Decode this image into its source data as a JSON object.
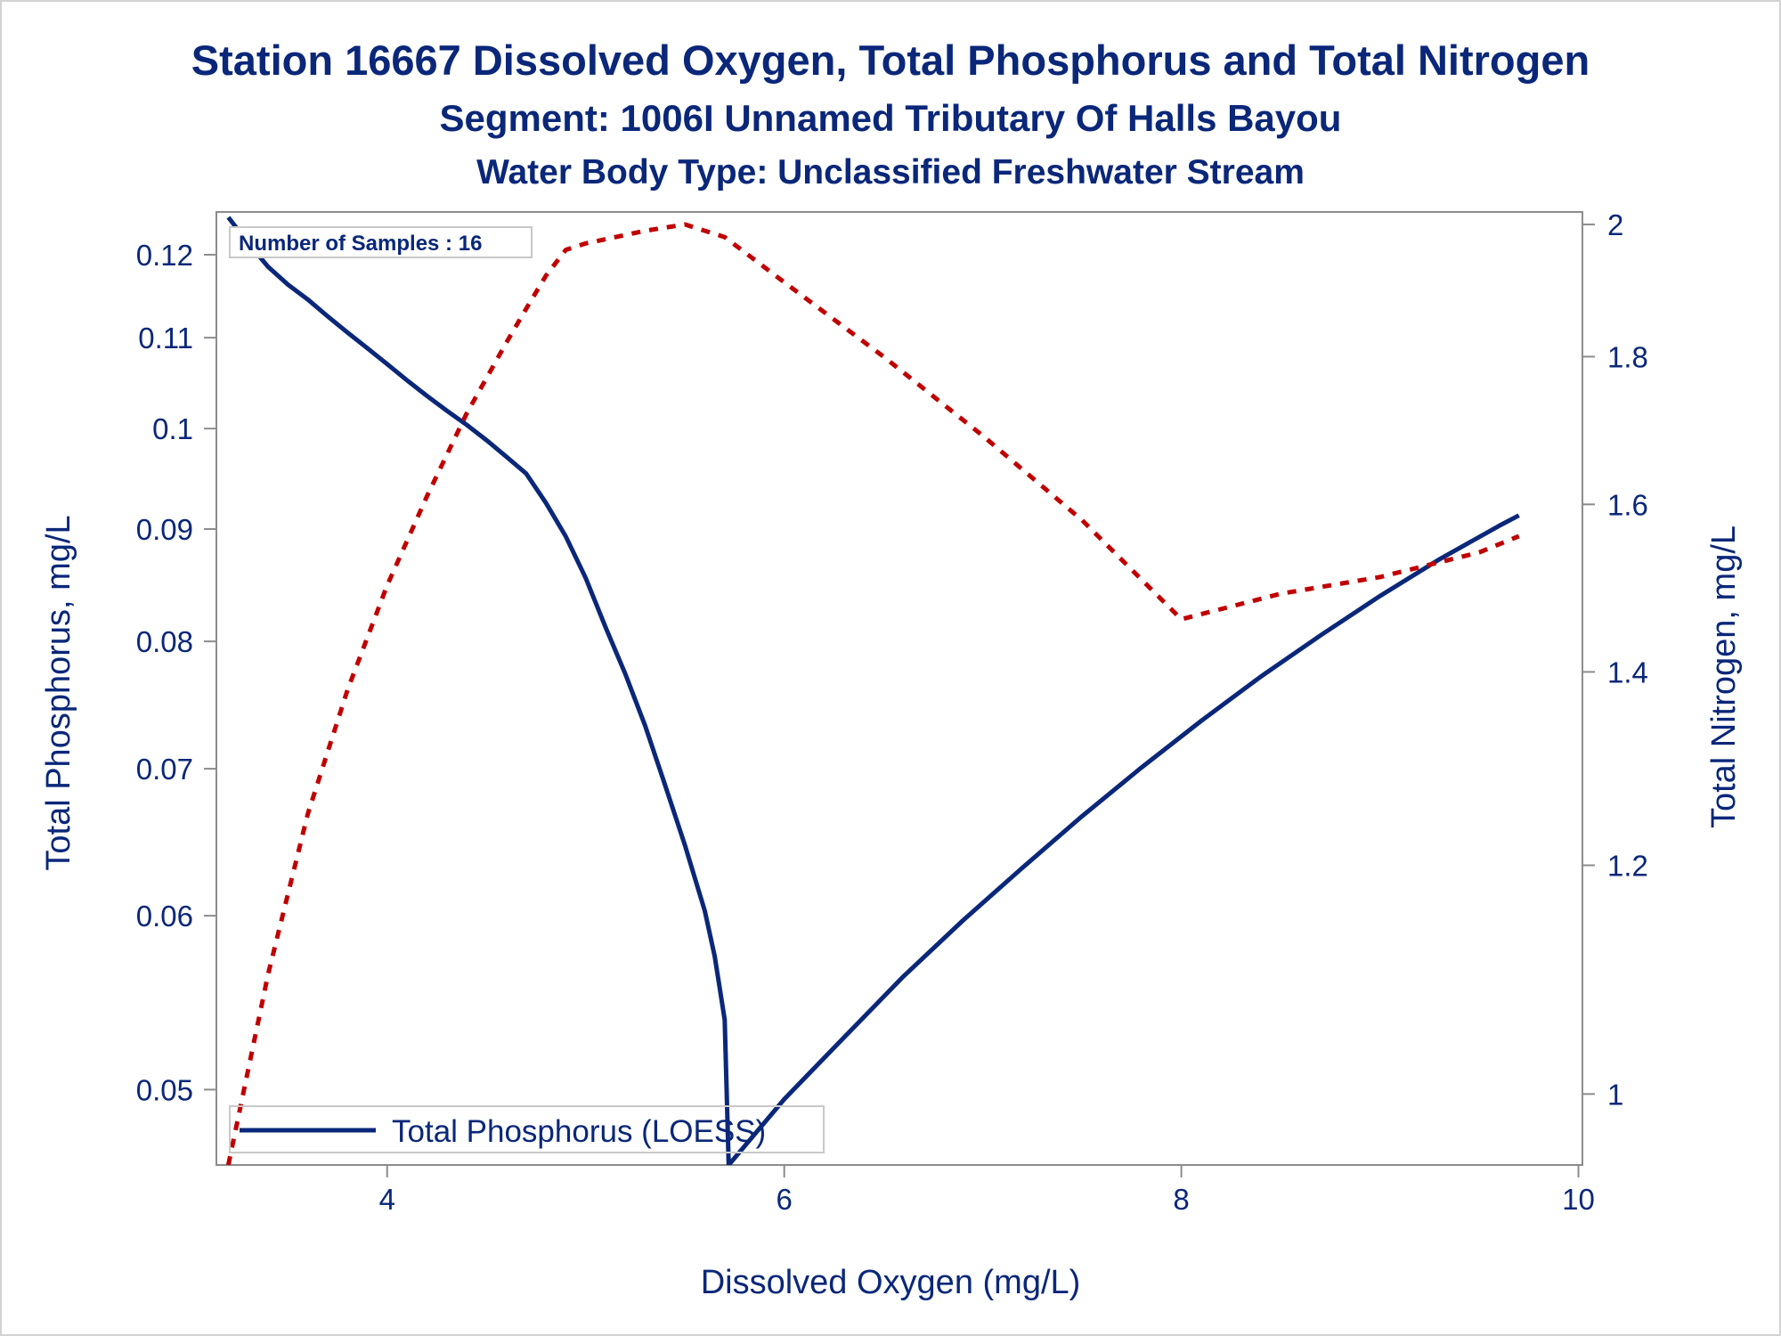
{
  "chart_data": {
    "type": "line",
    "title": "Station 16667  Dissolved Oxygen, Total Phosphorus and Total Nitrogen",
    "subtitles": [
      "Segment: 1006I  Unnamed Tributary Of Halls Bayou",
      "Water Body Type: Unclassified Freshwater Stream"
    ],
    "xlabel": "Dissolved Oxygen (mg/L)",
    "ylabel": "Total Phosphorus, mg/L",
    "y2label": "Total Nitrogen, mg/L",
    "xlim": [
      3.14,
      10.02
    ],
    "ylim": [
      0.0462,
      0.1255
    ],
    "y_scale": "log",
    "y2lim": [
      0.945,
      2.02
    ],
    "y2_scale": "log",
    "x_ticks": [
      "4",
      "6",
      "8",
      "10"
    ],
    "y_ticks": [
      "0.05",
      "0.06",
      "0.07",
      "0.08",
      "0.09",
      "0.1",
      "0.11",
      "0.12"
    ],
    "y2_ticks": [
      "1",
      "1.2",
      "1.4",
      "1.6",
      "1.8",
      "2"
    ],
    "annotation": "Number of Samples : 16",
    "grid": false,
    "legend_position": "bottom-left",
    "series": [
      {
        "name": "Total Phosphorus (LOESS)",
        "axis": "left",
        "color": "#0a2779",
        "style": "solid",
        "points": [
          [
            3.2,
            0.1248
          ],
          [
            3.3,
            0.1215
          ],
          [
            3.4,
            0.1185
          ],
          [
            3.5,
            0.1163
          ],
          [
            3.6,
            0.1145
          ],
          [
            3.7,
            0.1125
          ],
          [
            3.8,
            0.1106
          ],
          [
            3.9,
            0.1088
          ],
          [
            4.0,
            0.107
          ],
          [
            4.1,
            0.1052
          ],
          [
            4.2,
            0.1035
          ],
          [
            4.3,
            0.1019
          ],
          [
            4.4,
            0.1004
          ],
          [
            4.5,
            0.0988
          ],
          [
            4.6,
            0.0971
          ],
          [
            4.7,
            0.0954
          ],
          [
            4.8,
            0.0925
          ],
          [
            4.9,
            0.0893
          ],
          [
            5.0,
            0.0855
          ],
          [
            5.1,
            0.0812
          ],
          [
            5.2,
            0.0773
          ],
          [
            5.3,
            0.0732
          ],
          [
            5.4,
            0.0688
          ],
          [
            5.5,
            0.0646
          ],
          [
            5.6,
            0.0603
          ],
          [
            5.65,
            0.0575
          ],
          [
            5.7,
            0.0538
          ],
          [
            5.72,
            0.0462
          ],
          [
            6.0,
            0.0495
          ],
          [
            6.3,
            0.0528
          ],
          [
            6.6,
            0.0563
          ],
          [
            6.9,
            0.0597
          ],
          [
            7.2,
            0.0631
          ],
          [
            7.5,
            0.0666
          ],
          [
            7.8,
            0.0701
          ],
          [
            8.1,
            0.0736
          ],
          [
            8.4,
            0.0771
          ],
          [
            8.7,
            0.0805
          ],
          [
            9.0,
            0.0839
          ],
          [
            9.3,
            0.0872
          ],
          [
            9.6,
            0.0903
          ],
          [
            9.7,
            0.0913
          ]
        ]
      },
      {
        "name": "",
        "axis": "right",
        "color": "#c00000",
        "style": "dashed",
        "points": [
          [
            3.2,
            0.945
          ],
          [
            3.4,
            1.1
          ],
          [
            3.6,
            1.25
          ],
          [
            3.8,
            1.38
          ],
          [
            4.0,
            1.5
          ],
          [
            4.2,
            1.61
          ],
          [
            4.4,
            1.72
          ],
          [
            4.6,
            1.82
          ],
          [
            4.7,
            1.87
          ],
          [
            4.8,
            1.92
          ],
          [
            4.9,
            1.96
          ],
          [
            5.0,
            1.97
          ],
          [
            5.3,
            1.99
          ],
          [
            5.5,
            2.0
          ],
          [
            5.7,
            1.98
          ],
          [
            6.0,
            1.91
          ],
          [
            6.5,
            1.8
          ],
          [
            7.0,
            1.69
          ],
          [
            7.5,
            1.58
          ],
          [
            8.0,
            1.46
          ],
          [
            8.5,
            1.49
          ],
          [
            9.0,
            1.51
          ],
          [
            9.5,
            1.54
          ],
          [
            9.7,
            1.56
          ]
        ]
      }
    ]
  }
}
